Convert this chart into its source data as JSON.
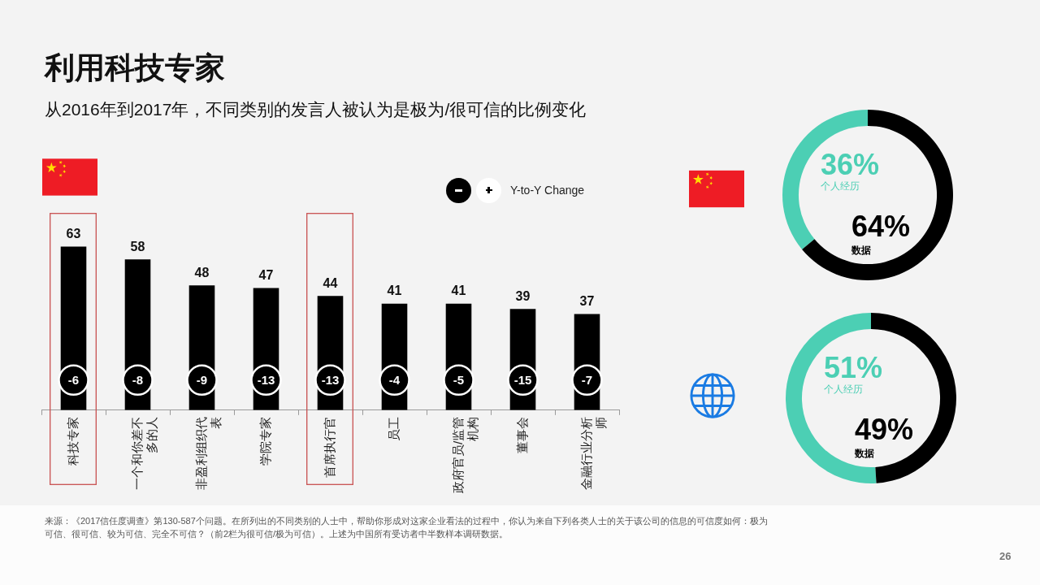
{
  "chart_data": [
    {
      "type": "bar",
      "title": "利用科技专家",
      "subtitle": "从2016年到2017年，不同类别的发言人被认为是极为/很可信的比例变化",
      "categories": [
        "科技专家",
        "一个和你差不多的人",
        "非盈利组织代表",
        "学院专家",
        "首席执行官",
        "员工",
        "政府官员/监管机构",
        "董事会",
        "金融行业分析师"
      ],
      "values": [
        63,
        58,
        48,
        47,
        44,
        41,
        41,
        39,
        37
      ],
      "color": "#000000",
      "data_labels": true,
      "annotations": [
        "Y-to-Y Change",
        "-6",
        "-8",
        "-9",
        "-13",
        "-13",
        "-4",
        "-5",
        "-15",
        "-7",
        "来源：《2017信任度调查》第130-587个问题。在所列出的不同类别的人士中，帮助你形成对这家企业看法的过程中，你认为来自下列各类人士的关于该公司的信息的可信度如何：极为可信、很可信、较为可信、完全不可信？（前2栏为很可信/极为可信）。上述为中国所有受访者中半数样本调研数据。",
        "26"
      ]
    },
    {
      "type": "donut",
      "categories": [
        "个人经历",
        "数据"
      ],
      "values": [
        36,
        64
      ],
      "colors": [
        "#4ccfb4",
        "#000000"
      ],
      "value_labels": [
        "36%",
        "64%"
      ]
    },
    {
      "type": "donut",
      "categories": [
        "个人经历",
        "数据"
      ],
      "values": [
        51,
        49
      ],
      "colors": [
        "#4ccfb4",
        "#000000"
      ],
      "value_labels": [
        "51%",
        "49%"
      ]
    }
  ]
}
